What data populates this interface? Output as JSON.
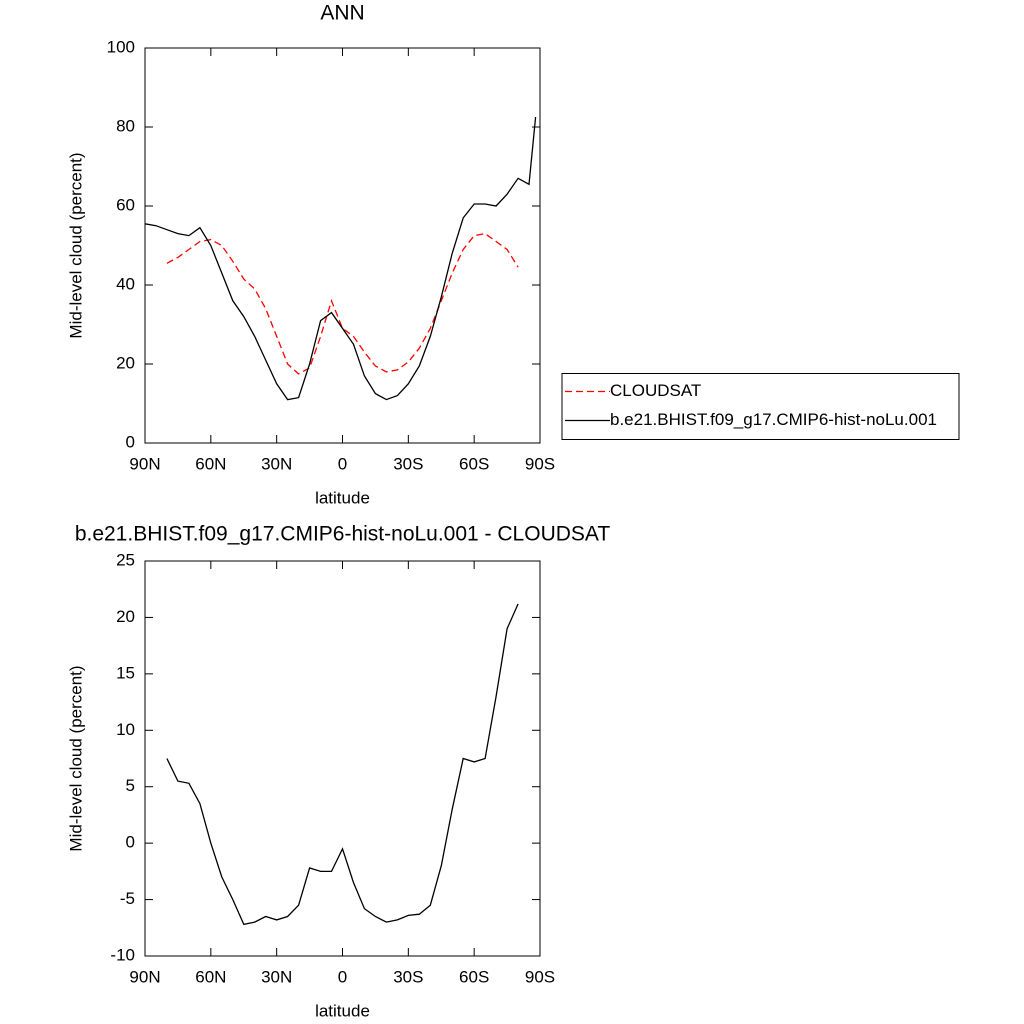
{
  "chart_data": [
    {
      "type": "line",
      "title": "ANN",
      "xlabel": "latitude",
      "ylabel": "Mid-level cloud (percent)",
      "x": [
        90,
        85,
        80,
        75,
        70,
        65,
        60,
        55,
        50,
        45,
        40,
        35,
        30,
        25,
        20,
        15,
        10,
        5,
        0,
        -5,
        -10,
        -15,
        -20,
        -25,
        -30,
        -35,
        -40,
        -45,
        -50,
        -55,
        -60,
        -65,
        -70,
        -75,
        -80,
        -85,
        -88
      ],
      "xlim": [
        90,
        -90
      ],
      "xticks": [
        {
          "value": 90,
          "label": "90N"
        },
        {
          "value": 60,
          "label": "60N"
        },
        {
          "value": 30,
          "label": "30N"
        },
        0,
        {
          "value": -30,
          "label": "30S"
        },
        {
          "value": -60,
          "label": "60S"
        },
        {
          "value": -90,
          "label": "90S"
        }
      ],
      "ylim": [
        0,
        100
      ],
      "yticks": [
        0,
        20,
        40,
        60,
        80,
        100
      ],
      "legend": "right",
      "series": [
        {
          "name": "CLOUDSAT",
          "color": "#ff0000",
          "dash": true,
          "values": [
            null,
            null,
            45.5,
            47,
            49,
            51,
            51.5,
            50,
            46,
            41.5,
            39,
            34,
            27,
            20,
            17.5,
            19,
            27,
            36,
            29,
            27,
            23,
            19.5,
            18,
            18.5,
            20.5,
            24,
            29,
            36,
            43,
            49,
            52.5,
            53,
            51,
            49,
            44.5,
            null,
            null
          ]
        },
        {
          "name": "b.e21.BHIST.f09_g17.CMIP6-hist-noLu.001",
          "color": "#000000",
          "dash": false,
          "values": [
            55.5,
            55,
            54,
            53,
            52.5,
            54.5,
            50,
            43,
            36,
            32,
            27,
            21,
            15,
            11,
            11.5,
            20,
            31,
            33,
            29,
            25,
            17,
            12.5,
            11,
            12,
            15,
            19.5,
            27,
            37,
            48,
            57,
            60.5,
            60.5,
            60,
            63,
            67,
            65.5,
            82.5
          ]
        }
      ]
    },
    {
      "type": "line",
      "title": "b.e21.BHIST.f09_g17.CMIP6-hist-noLu.001 - CLOUDSAT",
      "xlabel": "latitude",
      "ylabel": "Mid-level cloud (percent)",
      "x": [
        90,
        85,
        80,
        75,
        70,
        65,
        60,
        55,
        50,
        45,
        40,
        35,
        30,
        25,
        20,
        15,
        10,
        5,
        0,
        -5,
        -10,
        -15,
        -20,
        -25,
        -30,
        -35,
        -40,
        -45,
        -50,
        -55,
        -60,
        -65,
        -70,
        -75,
        -80,
        -85,
        -88
      ],
      "xlim": [
        90,
        -90
      ],
      "xticks": [
        {
          "value": 90,
          "label": "90N"
        },
        {
          "value": 60,
          "label": "60N"
        },
        {
          "value": 30,
          "label": "30N"
        },
        0,
        {
          "value": -30,
          "label": "30S"
        },
        {
          "value": -60,
          "label": "60S"
        },
        {
          "value": -90,
          "label": "90S"
        }
      ],
      "ylim": [
        -10,
        25
      ],
      "yticks": [
        -10,
        -5,
        0,
        5,
        10,
        15,
        20,
        25
      ],
      "series": [
        {
          "color": "#000000",
          "dash": false,
          "values": [
            null,
            null,
            7.5,
            5.5,
            5.3,
            3.5,
            0,
            -3,
            -5,
            -7.2,
            -7,
            -6.5,
            -6.8,
            -6.5,
            -5.5,
            -2.2,
            -2.5,
            -2.5,
            -0.5,
            -3.5,
            -5.8,
            -6.5,
            -7,
            -6.8,
            -6.4,
            -6.3,
            -5.5,
            -2,
            3,
            7.5,
            7.2,
            7.5,
            13,
            19,
            21.2,
            null,
            null
          ]
        }
      ]
    }
  ]
}
